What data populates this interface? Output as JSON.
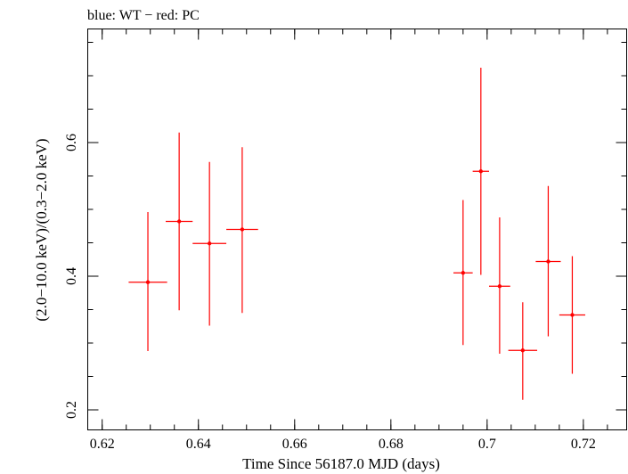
{
  "chart_data": {
    "type": "scatter",
    "title": "blue: WT − red: PC",
    "xlabel": "Time Since 56187.0 MJD (days)",
    "ylabel": "(2.0−10.0 keV)/(0.3−2.0 keV)",
    "xlim": [
      0.617,
      0.729
    ],
    "ylim": [
      0.17,
      0.77
    ],
    "x_ticks": [
      {
        "value": 0.62,
        "label": "0.62"
      },
      {
        "value": 0.64,
        "label": "0.64"
      },
      {
        "value": 0.66,
        "label": "0.66"
      },
      {
        "value": 0.68,
        "label": "0.68"
      },
      {
        "value": 0.7,
        "label": "0.7"
      },
      {
        "value": 0.72,
        "label": "0.72"
      }
    ],
    "y_ticks": [
      {
        "value": 0.2,
        "label": "0.2"
      },
      {
        "value": 0.4,
        "label": "0.4"
      },
      {
        "value": 0.6,
        "label": "0.6"
      }
    ],
    "x_minor_step": 0.005,
    "y_minor_step": 0.05,
    "grid": false,
    "series": [
      {
        "color": "#ff0000",
        "points": [
          {
            "x": 0.6295,
            "y": 0.391,
            "xerr": 0.004,
            "ylo": 0.288,
            "yhi": 0.496
          },
          {
            "x": 0.636,
            "y": 0.482,
            "xerr": 0.0028,
            "ylo": 0.349,
            "yhi": 0.615
          },
          {
            "x": 0.6423,
            "y": 0.449,
            "xerr": 0.0035,
            "ylo": 0.326,
            "yhi": 0.571
          },
          {
            "x": 0.6491,
            "y": 0.47,
            "xerr": 0.0033,
            "ylo": 0.345,
            "yhi": 0.593
          },
          {
            "x": 0.695,
            "y": 0.405,
            "xerr": 0.002,
            "ylo": 0.297,
            "yhi": 0.514
          },
          {
            "x": 0.6987,
            "y": 0.557,
            "xerr": 0.0017,
            "ylo": 0.402,
            "yhi": 0.712
          },
          {
            "x": 0.7026,
            "y": 0.385,
            "xerr": 0.0022,
            "ylo": 0.284,
            "yhi": 0.488
          },
          {
            "x": 0.7074,
            "y": 0.289,
            "xerr": 0.003,
            "ylo": 0.215,
            "yhi": 0.361
          },
          {
            "x": 0.7127,
            "y": 0.422,
            "xerr": 0.0026,
            "ylo": 0.31,
            "yhi": 0.535
          },
          {
            "x": 0.7177,
            "y": 0.342,
            "xerr": 0.0027,
            "ylo": 0.254,
            "yhi": 0.43
          }
        ]
      }
    ]
  }
}
